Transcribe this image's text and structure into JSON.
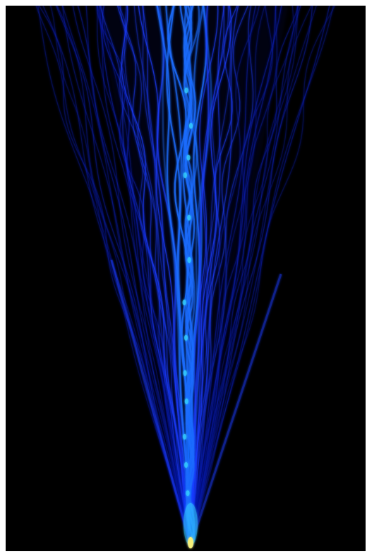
{
  "image": {
    "colors": {
      "page_background": "#ffffff",
      "plot_background": "#000000",
      "dim_blue": "#0b1aa8",
      "mid_blue": "#1a3cff",
      "bright_blue": "#1e6dff",
      "cyan": "#35d0ff",
      "yellow": "#f5f07a"
    }
  }
}
